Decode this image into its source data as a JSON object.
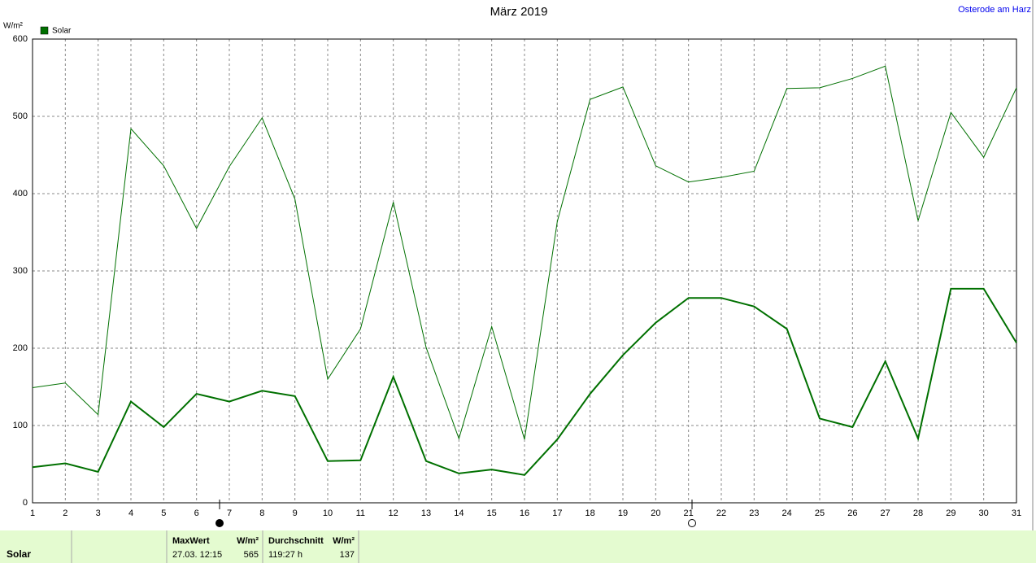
{
  "chart_data": {
    "type": "line",
    "title": "März 2019",
    "location": "Osterode am Harz",
    "y_label": "W/m²",
    "x": [
      1,
      2,
      3,
      4,
      5,
      6,
      7,
      8,
      9,
      10,
      11,
      12,
      13,
      14,
      15,
      16,
      17,
      18,
      19,
      20,
      21,
      22,
      23,
      24,
      25,
      26,
      27,
      28,
      29,
      30,
      31
    ],
    "series": [
      {
        "name": "Solar",
        "color": "#007000",
        "values": [
          46,
          51,
          40,
          131,
          98,
          141,
          131,
          145,
          138,
          54,
          55,
          163,
          54,
          38,
          43,
          36,
          82,
          141,
          191,
          233,
          265,
          265,
          254,
          225,
          109,
          98,
          183,
          83,
          277,
          277,
          207
        ]
      },
      {
        "color": "#007000",
        "values": [
          149,
          155,
          114,
          484,
          436,
          355,
          435,
          498,
          393,
          160,
          225,
          389,
          201,
          83,
          228,
          82,
          364,
          522,
          538,
          436,
          415,
          421,
          429,
          536,
          537,
          549,
          565,
          365,
          505,
          447,
          537
        ]
      }
    ],
    "xlim": [
      1,
      31
    ],
    "xticks": [
      1,
      2,
      3,
      4,
      5,
      6,
      7,
      8,
      9,
      10,
      11,
      12,
      13,
      14,
      15,
      16,
      17,
      18,
      19,
      20,
      21,
      22,
      23,
      24,
      25,
      26,
      27,
      28,
      29,
      30,
      31
    ],
    "ylim": [
      0,
      600
    ],
    "yticks": [
      0,
      100,
      200,
      300,
      400,
      500,
      600
    ],
    "grid": true
  },
  "footer": {
    "row_label": "Solar",
    "max_header": "MaxWert",
    "max_unit": "W/m²",
    "max_time": "27.03.  12:15",
    "max_value": "565",
    "avg_header": "Durchschnitt",
    "avg_unit": "W/m²",
    "avg_time": "119:27 h",
    "avg_value": "137"
  }
}
